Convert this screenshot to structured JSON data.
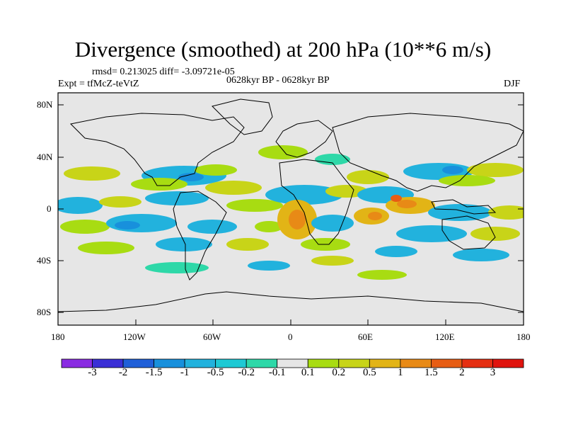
{
  "header": {
    "title": "Divergence (smoothed) at 200 hPa (10**6 m/s)",
    "stats": "rmsd= 0.213025 diff= -3.09721e-05",
    "experiment": "Expt = tfMcZ-teVtZ",
    "period": "0628kyr BP - 0628kyr BP",
    "season": "DJF"
  },
  "axes": {
    "lat_labels": [
      "80N",
      "40N",
      "0",
      "40S",
      "80S"
    ],
    "lon_labels": [
      "180",
      "120W",
      "60W",
      "0",
      "60E",
      "120E",
      "180"
    ]
  },
  "colorbar": {
    "labels": [
      "-3",
      "-2",
      "-1.5",
      "-1",
      "-0.5",
      "-0.2",
      "-0.1",
      "0.1",
      "0.2",
      "0.5",
      "1",
      "1.5",
      "2",
      "3"
    ],
    "colors": [
      "#8a2be2",
      "#3a2fd6",
      "#1f5fd8",
      "#1890dc",
      "#22b2dd",
      "#1ec9d4",
      "#2ed8a8",
      "#e6e6e6",
      "#a8dc12",
      "#c8d418",
      "#e2b416",
      "#e88a16",
      "#e75d14",
      "#e52f12",
      "#e0140e"
    ]
  }
}
